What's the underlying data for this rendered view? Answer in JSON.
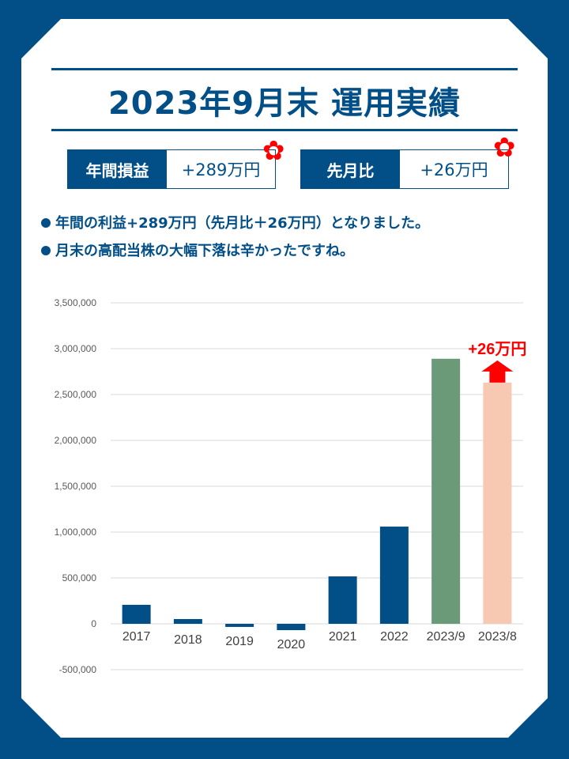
{
  "title": "2023年9月末 運用実績",
  "summary": [
    {
      "label": "年間損益",
      "value": "+289万円"
    },
    {
      "label": "先月比",
      "value": "+26万円"
    }
  ],
  "bullets": [
    "年間の利益+289万円（先月比＋26万円）となりました。",
    "月末の高配当株の大幅下落は辛かったですね。"
  ],
  "chart_data": {
    "type": "bar",
    "categories": [
      "2017",
      "2018",
      "2019",
      "2020",
      "2021",
      "2022",
      "2023/9",
      "2023/8"
    ],
    "values": [
      207000,
      52000,
      -34000,
      -69000,
      517000,
      1060000,
      2890000,
      2630000
    ],
    "colors": [
      "#024f87",
      "#024f87",
      "#024f87",
      "#024f87",
      "#024f87",
      "#024f87",
      "#6a9a77",
      "#f7c9b3"
    ],
    "yticks": [
      -500000,
      0,
      500000,
      1000000,
      1500000,
      2000000,
      2500000,
      3000000,
      3500000
    ],
    "ytick_labels": [
      "-500,000",
      "0",
      "500,000",
      "1,000,000",
      "1,500,000",
      "2,000,000",
      "2,500,000",
      "3,000,000",
      "3,500,000"
    ],
    "ylim": [
      -500000,
      3500000
    ],
    "grid": true,
    "annotation": "+26万円",
    "arrow_color": "#ff0000"
  }
}
